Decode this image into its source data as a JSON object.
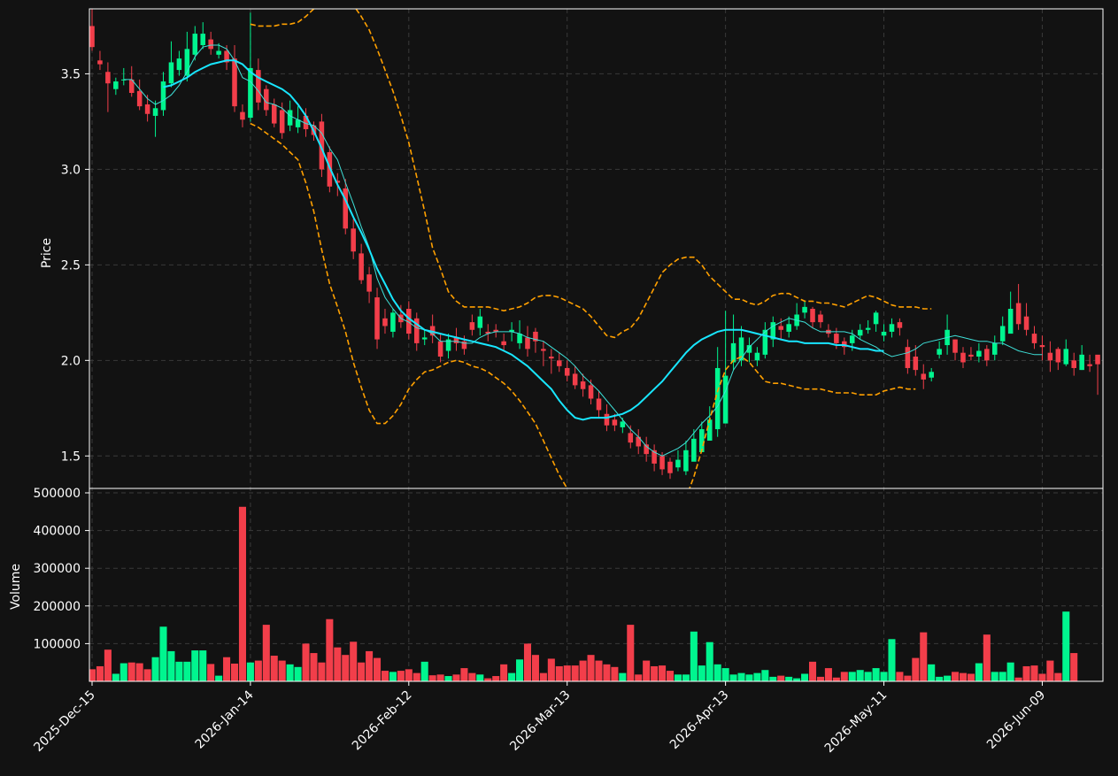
{
  "colors": {
    "background": "#121212",
    "grid": "#3a3a3a",
    "frame": "#ffffff",
    "up": "#00f58f",
    "down": "#f23e4a",
    "ma_fast": "#3ee0d8",
    "ma_slow": "#18e6ff",
    "bands": "#ffa000",
    "text": "#ffffff"
  },
  "chart_data": {
    "type": "candlestick",
    "title": "",
    "price_panel": {
      "ylabel": "Price",
      "ylim": [
        1.33,
        3.84
      ],
      "yticks": [
        1.5,
        2.0,
        2.5,
        3.0,
        3.5
      ],
      "ytick_labels": [
        "1.5",
        "2.0",
        "2.5",
        "3.0",
        "3.5"
      ]
    },
    "volume_panel": {
      "ylabel": "Volume",
      "ylim": [
        0,
        500000
      ],
      "yticks": [
        100000,
        200000,
        300000,
        400000,
        500000
      ],
      "ytick_labels": [
        "100000",
        "200000",
        "300000",
        "400000",
        "500000"
      ]
    },
    "x_tick_labels": [
      {
        "index": 0,
        "label": "2025-Dec-15"
      },
      {
        "index": 20,
        "label": "2026-Jan-14"
      },
      {
        "index": 40,
        "label": "2026-Feb-12"
      },
      {
        "index": 60,
        "label": "2026-Mar-13"
      },
      {
        "index": 80,
        "label": "2026-Apr-13"
      },
      {
        "index": 100,
        "label": "2026-May-11"
      },
      {
        "index": 120,
        "label": "2026-Jun-09"
      }
    ],
    "grid": true,
    "series": [
      {
        "name": "Open",
        "values": [
          3.75,
          3.57,
          3.51,
          3.42,
          3.47,
          3.47,
          3.41,
          3.34,
          3.28,
          3.31,
          3.45,
          3.52,
          3.49,
          3.6,
          3.65,
          3.68,
          3.6,
          3.62,
          3.58,
          3.3,
          3.27,
          3.52,
          3.42,
          3.34,
          3.31,
          3.23,
          3.22,
          3.28,
          3.23,
          3.25,
          3.09,
          2.94,
          2.9,
          2.69,
          2.56,
          2.45,
          2.33,
          2.22,
          2.15,
          2.24,
          2.27,
          2.22,
          2.11,
          2.18,
          2.1,
          2.05,
          2.12,
          2.1,
          2.2,
          2.17,
          2.15,
          2.16,
          2.1,
          2.15,
          2.09,
          2.12,
          2.15,
          2.06,
          2.02,
          2.0,
          1.96,
          1.93,
          1.89,
          1.87,
          1.8,
          1.72,
          1.69,
          1.65,
          1.62,
          1.6,
          1.56,
          1.53,
          1.5,
          1.47,
          1.44,
          1.42,
          1.47,
          1.52,
          1.58,
          1.64,
          1.67,
          1.99,
          2.0,
          2.04,
          2.0,
          2.03,
          2.11,
          2.18,
          2.15,
          2.18,
          2.25,
          2.27,
          2.24,
          2.16,
          2.14,
          2.1,
          2.09,
          2.13,
          2.16,
          2.19,
          2.13,
          2.15,
          2.2,
          2.07,
          2.02,
          1.93,
          1.91,
          2.03,
          2.08,
          2.11,
          2.04,
          2.03,
          2.02,
          2.06,
          2.03,
          2.1,
          2.14,
          2.3,
          2.23,
          2.14,
          2.08,
          2.04,
          2.06,
          1.98,
          2.0,
          1.95,
          1.98,
          2.03
        ]
      },
      {
        "name": "Close",
        "values": [
          3.64,
          3.55,
          3.45,
          3.46,
          3.47,
          3.4,
          3.33,
          3.29,
          3.32,
          3.46,
          3.56,
          3.58,
          3.63,
          3.71,
          3.71,
          3.63,
          3.62,
          3.56,
          3.33,
          3.26,
          3.53,
          3.35,
          3.31,
          3.24,
          3.19,
          3.31,
          3.26,
          3.21,
          3.18,
          3.0,
          2.91,
          2.93,
          2.69,
          2.57,
          2.42,
          2.36,
          2.11,
          2.18,
          2.25,
          2.2,
          2.14,
          2.09,
          2.12,
          2.13,
          2.02,
          2.11,
          2.09,
          2.06,
          2.16,
          2.23,
          2.14,
          2.15,
          2.08,
          2.16,
          2.14,
          2.06,
          2.1,
          2.05,
          2.01,
          1.97,
          1.92,
          1.87,
          1.85,
          1.8,
          1.74,
          1.66,
          1.66,
          1.68,
          1.57,
          1.55,
          1.51,
          1.46,
          1.43,
          1.41,
          1.48,
          1.53,
          1.59,
          1.64,
          1.69,
          1.96,
          1.92,
          2.09,
          2.12,
          2.08,
          2.04,
          2.16,
          2.2,
          2.16,
          2.19,
          2.24,
          2.28,
          2.2,
          2.2,
          2.14,
          2.09,
          2.07,
          2.13,
          2.16,
          2.17,
          2.25,
          2.15,
          2.19,
          2.17,
          1.96,
          1.95,
          1.9,
          1.94,
          2.06,
          2.16,
          2.04,
          1.99,
          2.02,
          2.05,
          2.0,
          2.09,
          2.18,
          2.27,
          2.19,
          2.16,
          2.09,
          2.07,
          2.0,
          1.99,
          2.06,
          1.96,
          2.03,
          1.97,
          1.98,
          2.1
        ]
      },
      {
        "name": "High",
        "values": [
          3.84,
          3.62,
          3.56,
          3.48,
          3.53,
          3.54,
          3.47,
          3.39,
          3.36,
          3.51,
          3.67,
          3.62,
          3.72,
          3.75,
          3.77,
          3.72,
          3.66,
          3.65,
          3.65,
          3.34,
          3.82,
          3.58,
          3.44,
          3.37,
          3.35,
          3.36,
          3.33,
          3.32,
          3.25,
          3.29,
          3.12,
          2.98,
          2.95,
          2.74,
          2.61,
          2.49,
          2.38,
          2.27,
          2.27,
          2.29,
          2.31,
          2.25,
          2.16,
          2.24,
          2.14,
          2.14,
          2.17,
          2.13,
          2.24,
          2.27,
          2.19,
          2.19,
          2.14,
          2.2,
          2.21,
          2.18,
          2.17,
          2.1,
          2.06,
          2.04,
          2.0,
          1.97,
          1.93,
          1.9,
          1.84,
          1.77,
          1.72,
          1.7,
          1.66,
          1.64,
          1.6,
          1.56,
          1.52,
          1.49,
          1.53,
          1.58,
          1.64,
          1.68,
          1.76,
          2.07,
          2.26,
          2.24,
          2.18,
          2.12,
          2.07,
          2.2,
          2.23,
          2.22,
          2.23,
          2.3,
          2.31,
          2.28,
          2.26,
          2.19,
          2.17,
          2.12,
          2.16,
          2.19,
          2.21,
          2.26,
          2.19,
          2.22,
          2.22,
          2.11,
          2.08,
          1.98,
          1.96,
          2.1,
          2.24,
          2.11,
          2.07,
          2.07,
          2.09,
          2.08,
          2.13,
          2.23,
          2.36,
          2.4,
          2.3,
          2.18,
          2.13,
          2.1,
          2.07,
          2.11,
          2.04,
          2.08,
          2.03,
          2.02,
          2.21
        ]
      },
      {
        "name": "Low",
        "values": [
          3.62,
          3.52,
          3.3,
          3.39,
          3.44,
          3.38,
          3.31,
          3.25,
          3.17,
          3.28,
          3.43,
          3.49,
          3.46,
          3.57,
          3.63,
          3.6,
          3.58,
          3.52,
          3.3,
          3.22,
          3.25,
          3.31,
          3.28,
          3.22,
          3.16,
          3.2,
          3.19,
          3.17,
          3.15,
          2.96,
          2.88,
          2.86,
          2.66,
          2.53,
          2.4,
          2.3,
          2.06,
          2.14,
          2.12,
          2.17,
          2.11,
          2.05,
          2.08,
          2.09,
          1.99,
          2.01,
          2.05,
          2.03,
          2.13,
          2.13,
          2.1,
          2.12,
          2.05,
          2.1,
          2.06,
          2.02,
          2.04,
          1.97,
          1.93,
          1.94,
          1.89,
          1.85,
          1.81,
          1.77,
          1.7,
          1.63,
          1.63,
          1.62,
          1.54,
          1.51,
          1.47,
          1.42,
          1.4,
          1.38,
          1.42,
          1.4,
          1.55,
          1.59,
          1.62,
          1.6,
          1.88,
          1.95,
          1.97,
          1.99,
          1.97,
          2.01,
          2.07,
          2.11,
          2.12,
          2.16,
          2.22,
          2.17,
          2.17,
          2.12,
          2.06,
          2.03,
          2.05,
          2.11,
          2.14,
          2.15,
          2.1,
          2.12,
          2.13,
          1.93,
          1.92,
          1.85,
          1.89,
          2.01,
          2.03,
          2.0,
          1.96,
          2.0,
          1.99,
          1.97,
          2.0,
          2.08,
          2.15,
          2.16,
          2.13,
          2.06,
          2.0,
          1.94,
          1.95,
          1.97,
          1.92,
          1.95,
          1.94,
          1.82,
          1.9
        ]
      },
      {
        "name": "Volume",
        "values": [
          32000,
          40000,
          84000,
          20000,
          48000,
          50000,
          48000,
          32000,
          64000,
          145000,
          80000,
          52000,
          52000,
          82000,
          82000,
          46000,
          15000,
          64000,
          47000,
          463000,
          50000,
          55000,
          150000,
          68000,
          55000,
          45000,
          38000,
          100000,
          75000,
          50000,
          165000,
          90000,
          70000,
          105000,
          50000,
          80000,
          62000,
          28000,
          25000,
          28000,
          32000,
          22000,
          52000,
          16000,
          18000,
          14000,
          18000,
          35000,
          22000,
          18000,
          8000,
          14000,
          45000,
          22000,
          58000,
          100000,
          70000,
          22000,
          60000,
          40000,
          42000,
          42000,
          55000,
          70000,
          55000,
          45000,
          38000,
          22000,
          150000,
          18000,
          55000,
          40000,
          42000,
          28000,
          18000,
          18000,
          132000,
          42000,
          104000,
          45000,
          35000,
          18000,
          22000,
          18000,
          22000,
          30000,
          12000,
          15000,
          12000,
          8000,
          20000,
          52000,
          12000,
          35000,
          10000,
          25000,
          25000,
          30000,
          25000,
          35000,
          25000,
          112000,
          25000,
          15000,
          62000,
          130000,
          45000,
          12000,
          15000,
          25000,
          22000,
          20000,
          48000,
          124000,
          25000,
          25000,
          50000,
          10000,
          40000,
          42000,
          20000,
          55000,
          22000,
          185000,
          75000
        ]
      },
      {
        "name": "",
        "values": [
          null,
          null,
          null,
          null,
          3.47,
          3.47,
          3.42,
          3.37,
          3.34,
          3.36,
          3.39,
          3.44,
          3.51,
          3.59,
          3.64,
          3.65,
          3.65,
          3.63,
          3.57,
          3.48,
          3.46,
          3.41,
          3.35,
          3.34,
          3.32,
          3.28,
          3.26,
          3.24,
          3.23,
          3.19,
          3.11,
          3.05,
          2.93,
          2.82,
          2.7,
          2.59,
          2.43,
          2.33,
          2.27,
          2.22,
          2.2,
          2.17,
          2.16,
          2.14,
          2.1,
          2.1,
          2.1,
          2.09,
          2.09,
          2.12,
          2.14,
          2.15,
          2.15,
          2.15,
          2.14,
          2.12,
          2.11,
          2.1,
          2.07,
          2.04,
          2.01,
          1.97,
          1.92,
          1.88,
          1.84,
          1.79,
          1.74,
          1.69,
          1.64,
          1.6,
          1.55,
          1.52,
          1.5,
          1.52,
          1.54,
          1.57,
          1.62,
          1.67,
          1.71,
          1.76,
          1.84,
          1.95,
          2.01,
          2.07,
          2.11,
          2.15,
          2.18,
          2.2,
          2.22,
          2.21,
          2.2,
          2.17,
          2.15,
          2.15,
          2.15,
          2.15,
          2.14,
          2.11,
          2.09,
          2.07,
          2.04,
          2.02,
          2.03,
          2.04,
          2.06,
          2.09,
          2.1,
          2.11,
          2.12,
          2.13,
          2.12,
          2.11,
          2.1,
          2.1,
          2.09,
          2.09,
          2.07,
          2.05,
          2.04,
          2.03,
          2.03
        ]
      },
      {
        "name": "",
        "values": [
          null,
          null,
          null,
          null,
          null,
          null,
          null,
          null,
          null,
          3.43,
          3.44,
          3.46,
          3.48,
          3.51,
          3.53,
          3.55,
          3.56,
          3.57,
          3.57,
          3.55,
          3.51,
          3.48,
          3.46,
          3.44,
          3.42,
          3.39,
          3.34,
          3.28,
          3.2,
          3.11,
          3.01,
          2.92,
          2.84,
          2.75,
          2.67,
          2.58,
          2.48,
          2.4,
          2.32,
          2.26,
          2.22,
          2.19,
          2.16,
          2.15,
          2.14,
          2.13,
          2.12,
          2.11,
          2.1,
          2.09,
          2.08,
          2.07,
          2.05,
          2.03,
          2.0,
          1.97,
          1.93,
          1.89,
          1.85,
          1.79,
          1.74,
          1.7,
          1.69,
          1.7,
          1.7,
          1.7,
          1.71,
          1.72,
          1.74,
          1.77,
          1.81,
          1.85,
          1.89,
          1.94,
          1.99,
          2.04,
          2.08,
          2.11,
          2.13,
          2.15,
          2.16,
          2.16,
          2.16,
          2.15,
          2.14,
          2.13,
          2.12,
          2.11,
          2.1,
          2.1,
          2.09,
          2.09,
          2.09,
          2.09,
          2.08,
          2.08,
          2.07,
          2.06,
          2.06,
          2.05,
          2.05
        ]
      },
      {
        "name": "",
        "values": [
          null,
          null,
          null,
          null,
          null,
          null,
          null,
          null,
          null,
          null,
          null,
          null,
          null,
          null,
          null,
          null,
          null,
          null,
          null,
          null,
          3.76,
          3.75,
          3.75,
          3.75,
          3.76,
          3.76,
          3.77,
          3.8,
          3.84,
          3.9,
          3.97,
          3.95,
          3.91,
          3.86,
          3.8,
          3.73,
          3.63,
          3.52,
          3.41,
          3.28,
          3.14,
          2.96,
          2.78,
          2.59,
          2.48,
          2.36,
          2.31,
          2.28,
          2.28,
          2.28,
          2.28,
          2.27,
          2.26,
          2.27,
          2.28,
          2.3,
          2.33,
          2.34,
          2.34,
          2.33,
          2.31,
          2.29,
          2.27,
          2.23,
          2.18,
          2.13,
          2.12,
          2.15,
          2.17,
          2.22,
          2.3,
          2.38,
          2.46,
          2.5,
          2.53,
          2.54,
          2.54,
          2.5,
          2.44,
          2.4,
          2.36,
          2.32,
          2.32,
          2.3,
          2.29,
          2.31,
          2.34,
          2.35,
          2.35,
          2.33,
          2.31,
          2.31,
          2.3,
          2.3,
          2.29,
          2.28,
          2.3,
          2.32,
          2.34,
          2.33,
          2.31,
          2.29,
          2.28,
          2.28,
          2.28,
          2.27,
          2.27
        ]
      },
      {
        "name": "",
        "values": [
          null,
          null,
          null,
          null,
          null,
          null,
          null,
          null,
          null,
          null,
          null,
          null,
          null,
          null,
          null,
          null,
          null,
          null,
          null,
          null,
          3.24,
          3.22,
          3.19,
          3.16,
          3.13,
          3.09,
          3.05,
          2.93,
          2.78,
          2.58,
          2.4,
          2.28,
          2.15,
          1.99,
          1.86,
          1.74,
          1.67,
          1.67,
          1.71,
          1.77,
          1.85,
          1.9,
          1.94,
          1.95,
          1.97,
          1.99,
          2.0,
          1.99,
          1.97,
          1.96,
          1.94,
          1.91,
          1.88,
          1.84,
          1.79,
          1.73,
          1.67,
          1.58,
          1.49,
          1.4,
          1.33,
          1.23,
          1.12,
          1.0,
          0.9,
          0.84,
          0.78,
          0.7,
          0.64,
          0.62,
          0.63,
          0.67,
          0.76,
          0.87,
          1.12,
          1.28,
          1.39,
          1.53,
          1.69,
          1.84,
          1.95,
          2.0,
          2.02,
          1.99,
          1.94,
          1.89,
          1.88,
          1.88,
          1.87,
          1.86,
          1.85,
          1.85,
          1.85,
          1.84,
          1.83,
          1.83,
          1.83,
          1.82,
          1.82,
          1.82,
          1.84,
          1.85,
          1.86,
          1.85,
          1.85
        ]
      }
    ]
  }
}
